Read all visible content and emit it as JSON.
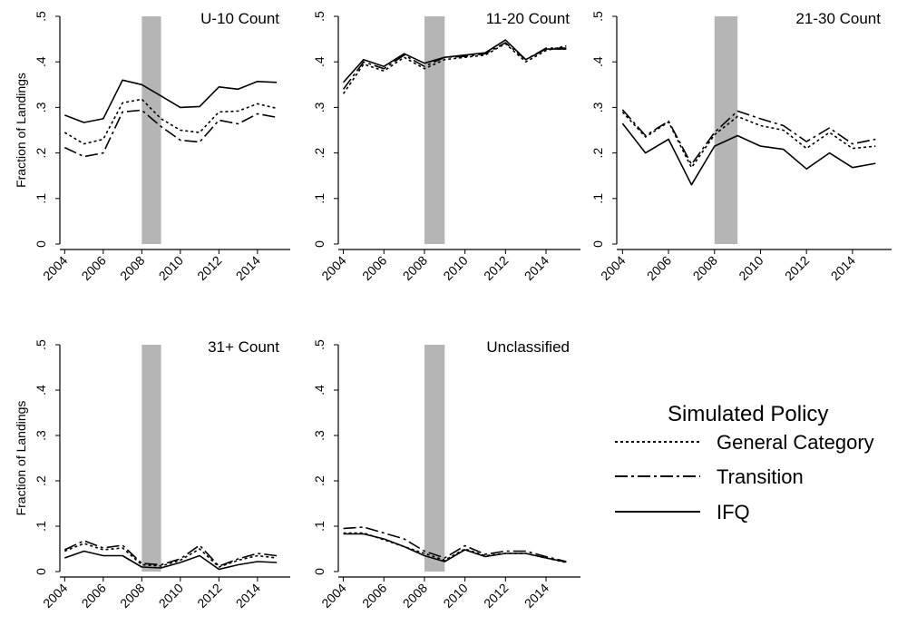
{
  "chart_data": [
    {
      "type": "line",
      "title": "U-10 Count",
      "ylabel": "Fraction of Landings",
      "x": [
        2004,
        2005,
        2006,
        2007,
        2008,
        2009,
        2010,
        2011,
        2012,
        2013,
        2014,
        2015
      ],
      "xticks": [
        "2004",
        "2006",
        "2008",
        "2010",
        "2012",
        "2014"
      ],
      "yticks": [
        "0",
        ".1",
        ".2",
        ".3",
        ".4",
        ".5"
      ],
      "ylim": [
        0,
        0.5
      ],
      "shaded_region": [
        2008,
        2009
      ],
      "series": [
        {
          "name": "General Category",
          "values": [
            0.245,
            0.22,
            0.23,
            0.31,
            0.318,
            0.275,
            0.25,
            0.245,
            0.29,
            0.292,
            0.308,
            0.298
          ]
        },
        {
          "name": "Transition",
          "values": [
            0.212,
            0.192,
            0.2,
            0.29,
            0.294,
            0.258,
            0.228,
            0.224,
            0.272,
            0.264,
            0.286,
            0.278
          ]
        },
        {
          "name": "IFQ",
          "values": [
            0.283,
            0.267,
            0.275,
            0.36,
            0.35,
            0.325,
            0.3,
            0.302,
            0.345,
            0.34,
            0.357,
            0.355
          ]
        }
      ]
    },
    {
      "type": "line",
      "title": "11-20 Count",
      "ylabel": "",
      "x": [
        2004,
        2005,
        2006,
        2007,
        2008,
        2009,
        2010,
        2011,
        2012,
        2013,
        2014,
        2015
      ],
      "xticks": [
        "2004",
        "2006",
        "2008",
        "2010",
        "2012",
        "2014"
      ],
      "yticks": [
        "0",
        ".1",
        ".2",
        ".3",
        ".4",
        ".5"
      ],
      "ylim": [
        0,
        0.5
      ],
      "shaded_region": [
        2008,
        2009
      ],
      "series": [
        {
          "name": "General Category",
          "values": [
            0.33,
            0.395,
            0.38,
            0.41,
            0.385,
            0.405,
            0.41,
            0.415,
            0.44,
            0.4,
            0.425,
            0.435
          ]
        },
        {
          "name": "Transition",
          "values": [
            0.34,
            0.4,
            0.385,
            0.415,
            0.39,
            0.41,
            0.412,
            0.418,
            0.442,
            0.405,
            0.43,
            0.43
          ]
        },
        {
          "name": "IFQ",
          "values": [
            0.355,
            0.405,
            0.39,
            0.418,
            0.397,
            0.41,
            0.415,
            0.42,
            0.448,
            0.405,
            0.428,
            0.428
          ]
        }
      ]
    },
    {
      "type": "line",
      "title": "21-30 Count",
      "ylabel": "",
      "x": [
        2004,
        2005,
        2006,
        2007,
        2008,
        2009,
        2010,
        2011,
        2012,
        2013,
        2014,
        2015
      ],
      "xticks": [
        "2004",
        "2006",
        "2008",
        "2010",
        "2012",
        "2014"
      ],
      "yticks": [
        "0",
        ".1",
        ".2",
        ".3",
        ".4",
        ".5"
      ],
      "ylim": [
        0,
        0.5
      ],
      "shaded_region": [
        2008,
        2009
      ],
      "series": [
        {
          "name": "General Category",
          "values": [
            0.29,
            0.235,
            0.268,
            0.168,
            0.24,
            0.28,
            0.26,
            0.25,
            0.21,
            0.245,
            0.21,
            0.215
          ]
        },
        {
          "name": "Transition",
          "values": [
            0.295,
            0.238,
            0.27,
            0.175,
            0.245,
            0.292,
            0.275,
            0.26,
            0.225,
            0.255,
            0.22,
            0.23
          ]
        },
        {
          "name": "IFQ",
          "values": [
            0.265,
            0.2,
            0.23,
            0.13,
            0.215,
            0.238,
            0.215,
            0.208,
            0.165,
            0.2,
            0.168,
            0.177
          ]
        }
      ]
    },
    {
      "type": "line",
      "title": "31+ Count",
      "ylabel": "Fraction of Landings",
      "x": [
        2004,
        2005,
        2006,
        2007,
        2008,
        2009,
        2010,
        2011,
        2012,
        2013,
        2014,
        2015
      ],
      "xticks": [
        "2004",
        "2006",
        "2008",
        "2010",
        "2012",
        "2014"
      ],
      "yticks": [
        "0",
        ".1",
        ".2",
        ".3",
        ".4",
        ".5"
      ],
      "ylim": [
        0,
        0.5
      ],
      "shaded_region": [
        2008,
        2009
      ],
      "series": [
        {
          "name": "General Category",
          "values": [
            0.045,
            0.062,
            0.048,
            0.052,
            0.015,
            0.012,
            0.025,
            0.05,
            0.01,
            0.025,
            0.035,
            0.03
          ]
        },
        {
          "name": "Transition",
          "values": [
            0.048,
            0.068,
            0.052,
            0.058,
            0.018,
            0.015,
            0.028,
            0.058,
            0.012,
            0.028,
            0.04,
            0.035
          ]
        },
        {
          "name": "IFQ",
          "values": [
            0.03,
            0.045,
            0.035,
            0.035,
            0.01,
            0.008,
            0.02,
            0.035,
            0.005,
            0.015,
            0.022,
            0.02
          ]
        }
      ]
    },
    {
      "type": "line",
      "title": "Unclassified",
      "ylabel": "",
      "x": [
        2004,
        2005,
        2006,
        2007,
        2008,
        2009,
        2010,
        2011,
        2012,
        2013,
        2014,
        2015
      ],
      "xticks": [
        "2004",
        "2006",
        "2008",
        "2010",
        "2012",
        "2014"
      ],
      "yticks": [
        "0",
        ".1",
        ".2",
        ".3",
        ".4",
        ".5"
      ],
      "ylim": [
        0,
        0.5
      ],
      "shaded_region": [
        2008,
        2009
      ],
      "series": [
        {
          "name": "General Category",
          "values": [
            0.085,
            0.085,
            0.07,
            0.055,
            0.04,
            0.025,
            0.05,
            0.035,
            0.04,
            0.04,
            0.03,
            0.02
          ]
        },
        {
          "name": "Transition",
          "values": [
            0.095,
            0.098,
            0.085,
            0.072,
            0.045,
            0.03,
            0.057,
            0.038,
            0.045,
            0.045,
            0.033,
            0.022
          ]
        },
        {
          "name": "IFQ",
          "values": [
            0.083,
            0.083,
            0.072,
            0.055,
            0.035,
            0.022,
            0.048,
            0.033,
            0.04,
            0.04,
            0.03,
            0.021
          ]
        }
      ]
    }
  ],
  "legend": {
    "title": "Simulated Policy",
    "entries": [
      {
        "label": "General Category",
        "style": "dotted"
      },
      {
        "label": "Transition",
        "style": "dash-dot"
      },
      {
        "label": "IFQ",
        "style": "solid"
      }
    ]
  },
  "colors": {
    "line": "#000000",
    "shade": "#b5b5b5",
    "axis": "#000000"
  }
}
